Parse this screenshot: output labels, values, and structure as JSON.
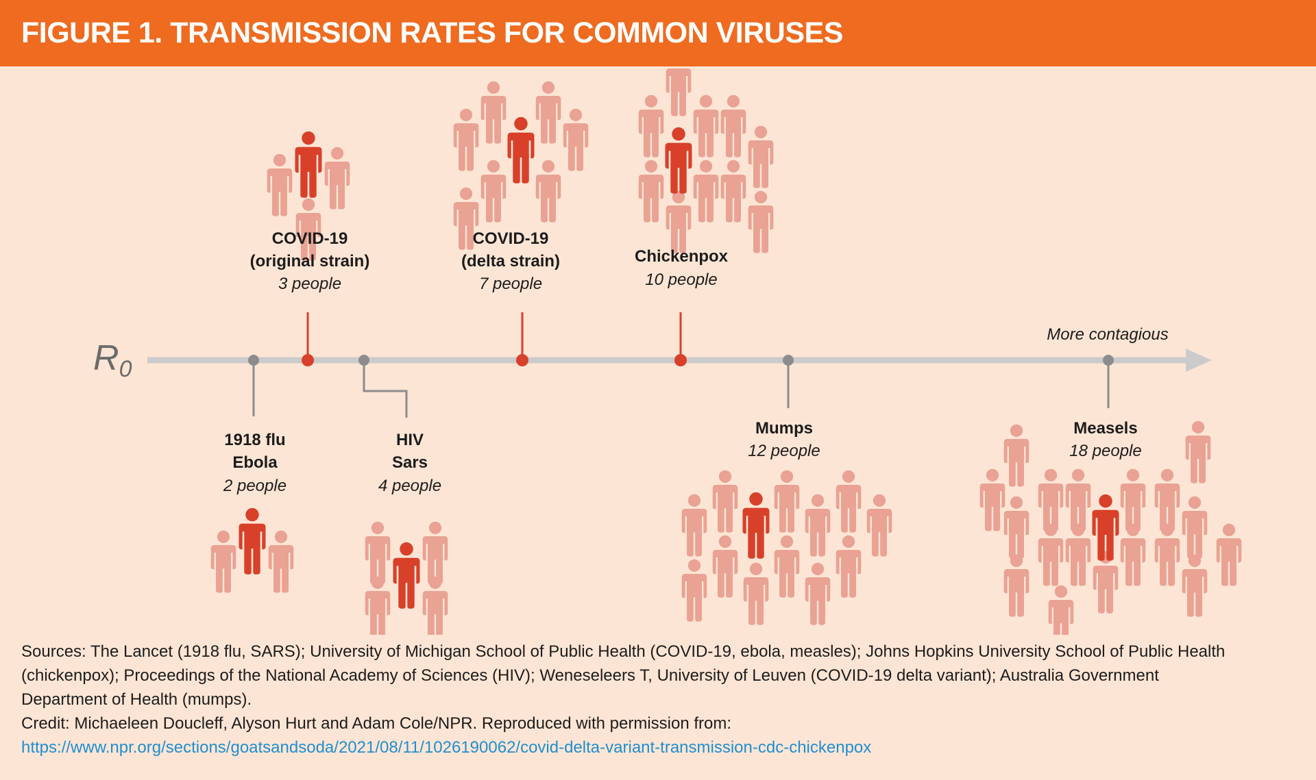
{
  "header": {
    "title": "FIGURE 1. TRANSMISSION RATES FOR COMMON VIRUSES"
  },
  "colors": {
    "header_bg": "#ef6b1f",
    "background": "#fde5d5",
    "highlight_red": "#d8402a",
    "person_pink": "#e9a293",
    "axis_gray": "#cbcbcb",
    "marker_gray": "#8c8c8c",
    "link_blue": "#1f8fcf"
  },
  "chart_data": {
    "type": "timeline",
    "title": "FIGURE 1. TRANSMISSION RATES FOR COMMON VIRUSES",
    "axis_label": "R",
    "axis_subscript": "0",
    "axis_end_label": "More contagious",
    "unit": "people",
    "groups": [
      {
        "lines": [
          "1918 flu",
          "Ebola"
        ],
        "count_label": "2 people",
        "r0": 2,
        "position": "below",
        "highlight": false
      },
      {
        "lines": [
          "COVID-19",
          "(original strain)"
        ],
        "count_label": "3 people",
        "r0": 3,
        "position": "above",
        "highlight": true
      },
      {
        "lines": [
          "HIV",
          "Sars"
        ],
        "count_label": "4 people",
        "r0": 4,
        "position": "below",
        "highlight": false
      },
      {
        "lines": [
          "COVID-19",
          "(delta strain)"
        ],
        "count_label": "7 people",
        "r0": 7,
        "position": "above",
        "highlight": true
      },
      {
        "lines": [
          "Chickenpox"
        ],
        "count_label": "10 people",
        "r0": 10,
        "position": "above",
        "highlight": true
      },
      {
        "lines": [
          "Mumps"
        ],
        "count_label": "12 people",
        "r0": 12,
        "position": "below",
        "highlight": false
      },
      {
        "lines": [
          "Measels"
        ],
        "count_label": "18 people",
        "r0": 18,
        "position": "below",
        "highlight": false
      }
    ]
  },
  "footer": {
    "sources_lines": [
      "Sources: The Lancet (1918 flu, SARS); University of Michigan School of Public Health (COVID-19, ebola, measles); Johns Hopkins University School of Public Health",
      "(chickenpox); Proceedings of the National Academy of Sciences (HIV); Weneseleers T, University of Leuven (COVID-19 delta variant); Australia Government",
      "Department of Health (mumps)."
    ],
    "credit": "Credit: Michaeleen Doucleff, Alyson Hurt and Adam Cole/NPR. Reproduced with permission from:",
    "url": "https://www.npr.org/sections/goatsandsoda/2021/08/11/1026190062/covid-delta-variant-transmission-cdc-chickenpox"
  }
}
